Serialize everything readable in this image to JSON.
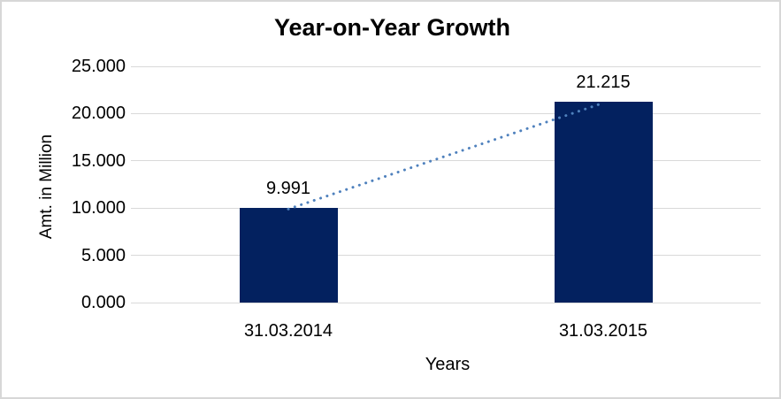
{
  "chart_data": {
    "type": "bar",
    "title": "Year-on-Year Growth",
    "categories": [
      "31.03.2014",
      "31.03.2015"
    ],
    "values": [
      9.991,
      21.215
    ],
    "data_labels": [
      "9.991",
      "21.215"
    ],
    "xlabel": "Years",
    "ylabel": "Amt. in Million",
    "ylim": [
      0,
      25
    ],
    "ytick_interval": 5,
    "yticks": [
      "25.000",
      "20.000",
      "15.000",
      "10.000",
      "5.000",
      "0.000"
    ],
    "grid": true,
    "legend": "none",
    "trendline": {
      "type": "linear",
      "style": "dotted",
      "from_value": 9.991,
      "to_value": 21.215
    },
    "colors": {
      "bar": "#03215F",
      "trendline": "#4F81BD",
      "gridline": "#D9D9D9",
      "text": "#000000",
      "background": "#FFFFFF",
      "border": "#D7D7D7"
    }
  }
}
